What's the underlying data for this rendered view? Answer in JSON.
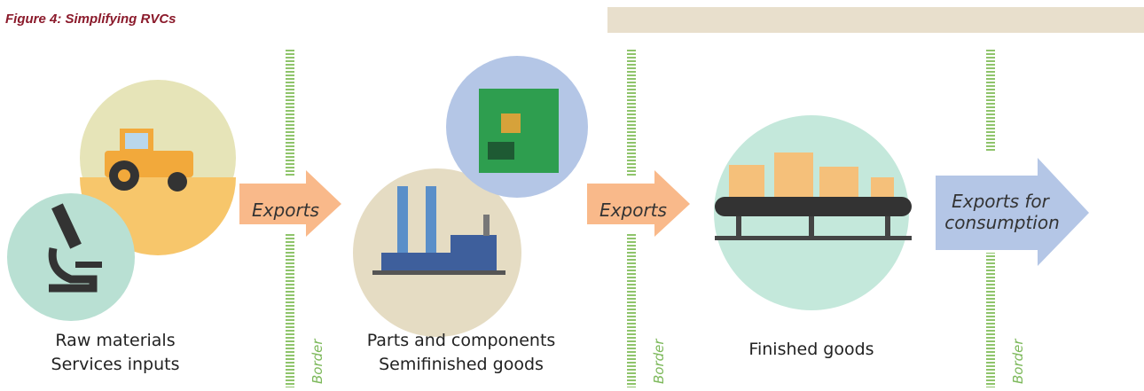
{
  "title": "Figure 4: Simplifying RVCs",
  "stages": [
    {
      "label_lines": [
        "Raw materials",
        "Services inputs"
      ]
    },
    {
      "label_lines": [
        "Parts and components",
        "Semifinished goods"
      ]
    },
    {
      "label_lines": [
        "Finished goods"
      ]
    }
  ],
  "arrows": [
    {
      "label_lines": [
        "Exports"
      ]
    },
    {
      "label_lines": [
        "Exports"
      ]
    },
    {
      "label_lines": [
        "Exports for",
        "consumption"
      ]
    }
  ],
  "borders": [
    {
      "label": "Border"
    },
    {
      "label": "Border"
    },
    {
      "label": "Border"
    }
  ]
}
